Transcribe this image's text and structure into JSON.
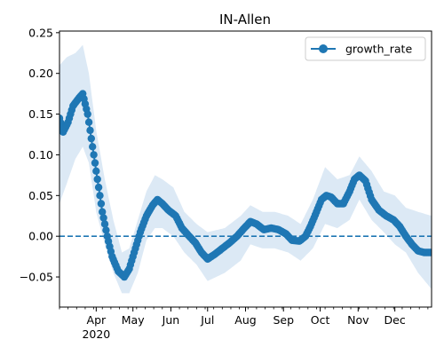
{
  "chart_data": {
    "type": "line",
    "title": "IN-Allen",
    "xlabel": "",
    "ylabel": "",
    "x_range": [
      "2020-03-02",
      "2020-12-31"
    ],
    "ylim": [
      -0.087,
      0.252
    ],
    "y_ticks": [
      -0.05,
      0.0,
      0.05,
      0.1,
      0.15,
      0.2,
      0.25
    ],
    "y_tick_labels": [
      "−0.05",
      "0.00",
      "0.05",
      "0.10",
      "0.15",
      "0.20",
      "0.25"
    ],
    "x_ticks": [
      {
        "date": "2020-04-01",
        "label": "Apr",
        "sublabel": "2020"
      },
      {
        "date": "2020-05-01",
        "label": "May"
      },
      {
        "date": "2020-06-01",
        "label": "Jun"
      },
      {
        "date": "2020-07-01",
        "label": "Jul"
      },
      {
        "date": "2020-08-01",
        "label": "Aug"
      },
      {
        "date": "2020-09-01",
        "label": "Sep"
      },
      {
        "date": "2020-10-01",
        "label": "Oct"
      },
      {
        "date": "2020-11-01",
        "label": "Nov"
      },
      {
        "date": "2020-12-01",
        "label": "Dec"
      }
    ],
    "grid": false,
    "legend": {
      "position": "top-right",
      "entries": [
        "growth_rate"
      ]
    },
    "reference_line": {
      "y": 0.0,
      "style": "dashed"
    },
    "colors": {
      "line": "#1f77b4",
      "band": "#dce9f5",
      "reference": "#1f77b4"
    },
    "series": [
      {
        "name": "growth_rate",
        "marker": "circle",
        "key_points": [
          [
            "2020-03-02",
            0.145
          ],
          [
            "2020-03-05",
            0.128
          ],
          [
            "2020-03-09",
            0.14
          ],
          [
            "2020-03-13",
            0.16
          ],
          [
            "2020-03-18",
            0.17
          ],
          [
            "2020-03-21",
            0.175
          ],
          [
            "2020-03-25",
            0.15
          ],
          [
            "2020-03-29",
            0.11
          ],
          [
            "2020-04-02",
            0.07
          ],
          [
            "2020-04-06",
            0.03
          ],
          [
            "2020-04-10",
            0.0
          ],
          [
            "2020-04-14",
            -0.025
          ],
          [
            "2020-04-19",
            -0.043
          ],
          [
            "2020-04-24",
            -0.05
          ],
          [
            "2020-04-28",
            -0.04
          ],
          [
            "2020-05-03",
            -0.015
          ],
          [
            "2020-05-07",
            0.005
          ],
          [
            "2020-05-12",
            0.025
          ],
          [
            "2020-05-17",
            0.038
          ],
          [
            "2020-05-21",
            0.045
          ],
          [
            "2020-05-25",
            0.04
          ],
          [
            "2020-05-30",
            0.032
          ],
          [
            "2020-06-05",
            0.025
          ],
          [
            "2020-06-10",
            0.01
          ],
          [
            "2020-06-16",
            0.0
          ],
          [
            "2020-06-21",
            -0.008
          ],
          [
            "2020-06-26",
            -0.02
          ],
          [
            "2020-07-01",
            -0.028
          ],
          [
            "2020-07-07",
            -0.022
          ],
          [
            "2020-07-13",
            -0.015
          ],
          [
            "2020-07-19",
            -0.008
          ],
          [
            "2020-07-25",
            0.0
          ],
          [
            "2020-07-31",
            0.01
          ],
          [
            "2020-08-05",
            0.018
          ],
          [
            "2020-08-10",
            0.015
          ],
          [
            "2020-08-16",
            0.008
          ],
          [
            "2020-08-22",
            0.01
          ],
          [
            "2020-08-28",
            0.008
          ],
          [
            "2020-09-03",
            0.003
          ],
          [
            "2020-09-08",
            -0.005
          ],
          [
            "2020-09-14",
            -0.006
          ],
          [
            "2020-09-19",
            0.0
          ],
          [
            "2020-09-23",
            0.012
          ],
          [
            "2020-09-28",
            0.03
          ],
          [
            "2020-10-02",
            0.045
          ],
          [
            "2020-10-06",
            0.05
          ],
          [
            "2020-10-10",
            0.048
          ],
          [
            "2020-10-15",
            0.04
          ],
          [
            "2020-10-20",
            0.04
          ],
          [
            "2020-10-25",
            0.055
          ],
          [
            "2020-10-29",
            0.07
          ],
          [
            "2020-11-02",
            0.075
          ],
          [
            "2020-11-07",
            0.068
          ],
          [
            "2020-11-12",
            0.045
          ],
          [
            "2020-11-18",
            0.032
          ],
          [
            "2020-11-24",
            0.025
          ],
          [
            "2020-11-30",
            0.02
          ],
          [
            "2020-12-05",
            0.012
          ],
          [
            "2020-12-10",
            0.0
          ],
          [
            "2020-12-15",
            -0.01
          ],
          [
            "2020-12-20",
            -0.018
          ],
          [
            "2020-12-25",
            -0.02
          ],
          [
            "2020-12-31",
            -0.02
          ]
        ],
        "band_upper": [
          [
            "2020-03-02",
            0.21
          ],
          [
            "2020-03-08",
            0.22
          ],
          [
            "2020-03-15",
            0.225
          ],
          [
            "2020-03-21",
            0.235
          ],
          [
            "2020-03-26",
            0.2
          ],
          [
            "2020-04-01",
            0.13
          ],
          [
            "2020-04-08",
            0.07
          ],
          [
            "2020-04-15",
            0.02
          ],
          [
            "2020-04-22",
            -0.02
          ],
          [
            "2020-04-28",
            -0.015
          ],
          [
            "2020-05-05",
            0.02
          ],
          [
            "2020-05-12",
            0.055
          ],
          [
            "2020-05-19",
            0.075
          ],
          [
            "2020-05-25",
            0.07
          ],
          [
            "2020-06-03",
            0.06
          ],
          [
            "2020-06-12",
            0.03
          ],
          [
            "2020-06-22",
            0.015
          ],
          [
            "2020-07-01",
            0.005
          ],
          [
            "2020-07-15",
            0.01
          ],
          [
            "2020-07-28",
            0.025
          ],
          [
            "2020-08-05",
            0.038
          ],
          [
            "2020-08-15",
            0.03
          ],
          [
            "2020-08-25",
            0.03
          ],
          [
            "2020-09-05",
            0.025
          ],
          [
            "2020-09-15",
            0.015
          ],
          [
            "2020-09-25",
            0.045
          ],
          [
            "2020-10-05",
            0.085
          ],
          [
            "2020-10-15",
            0.07
          ],
          [
            "2020-10-25",
            0.075
          ],
          [
            "2020-11-02",
            0.098
          ],
          [
            "2020-11-12",
            0.08
          ],
          [
            "2020-11-22",
            0.055
          ],
          [
            "2020-12-01",
            0.05
          ],
          [
            "2020-12-10",
            0.035
          ],
          [
            "2020-12-20",
            0.03
          ],
          [
            "2020-12-31",
            0.025
          ]
        ],
        "band_lower": [
          [
            "2020-03-02",
            0.04
          ],
          [
            "2020-03-08",
            0.065
          ],
          [
            "2020-03-15",
            0.095
          ],
          [
            "2020-03-21",
            0.11
          ],
          [
            "2020-03-26",
            0.09
          ],
          [
            "2020-04-01",
            0.03
          ],
          [
            "2020-04-08",
            -0.01
          ],
          [
            "2020-04-15",
            -0.045
          ],
          [
            "2020-04-22",
            -0.07
          ],
          [
            "2020-04-28",
            -0.07
          ],
          [
            "2020-05-05",
            -0.045
          ],
          [
            "2020-05-12",
            -0.005
          ],
          [
            "2020-05-19",
            0.01
          ],
          [
            "2020-05-25",
            0.01
          ],
          [
            "2020-06-03",
            0.0
          ],
          [
            "2020-06-12",
            -0.02
          ],
          [
            "2020-06-22",
            -0.035
          ],
          [
            "2020-07-01",
            -0.055
          ],
          [
            "2020-07-15",
            -0.045
          ],
          [
            "2020-07-28",
            -0.03
          ],
          [
            "2020-08-05",
            -0.01
          ],
          [
            "2020-08-15",
            -0.015
          ],
          [
            "2020-08-25",
            -0.015
          ],
          [
            "2020-09-05",
            -0.02
          ],
          [
            "2020-09-15",
            -0.03
          ],
          [
            "2020-09-25",
            -0.015
          ],
          [
            "2020-10-05",
            0.015
          ],
          [
            "2020-10-15",
            0.01
          ],
          [
            "2020-10-25",
            0.02
          ],
          [
            "2020-11-02",
            0.045
          ],
          [
            "2020-11-12",
            0.02
          ],
          [
            "2020-11-22",
            0.005
          ],
          [
            "2020-12-01",
            -0.01
          ],
          [
            "2020-12-10",
            -0.02
          ],
          [
            "2020-12-20",
            -0.045
          ],
          [
            "2020-12-31",
            -0.065
          ]
        ]
      }
    ]
  }
}
